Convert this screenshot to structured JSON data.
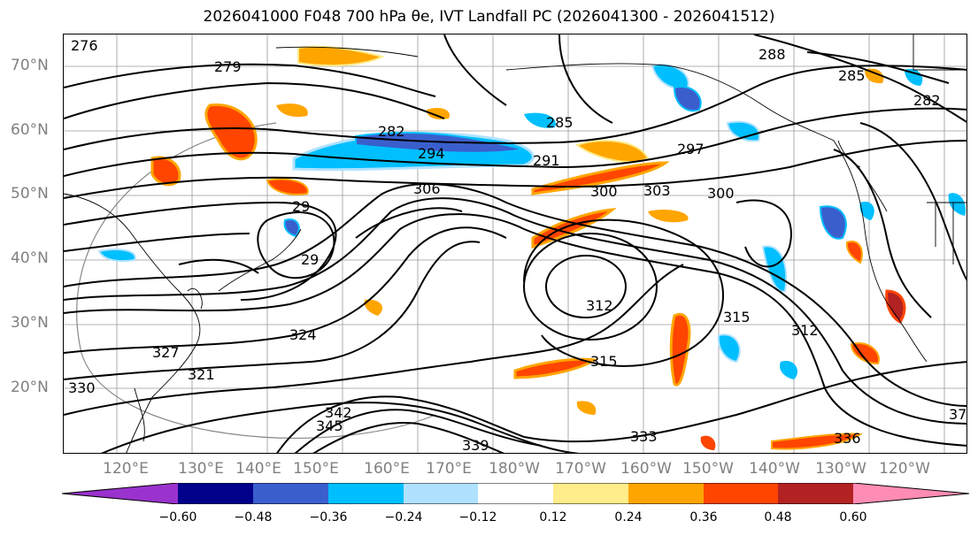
{
  "title": "2026041000 F048 700 hPa θe, IVT Landfall PC (2026041300 - 2026041512)",
  "lat_labels": [
    "70°N",
    "60°N",
    "50°N",
    "40°N",
    "30°N",
    "20°N"
  ],
  "lon_labels": [
    "120°E",
    "130°E",
    "140°E",
    "150°E",
    "160°E",
    "170°E",
    "180°W",
    "170°W",
    "160°W",
    "150°W",
    "140°W",
    "130°W",
    "120°W"
  ],
  "contour_labels": [
    "276",
    "279",
    "288",
    "285",
    "282",
    "285",
    "282",
    "294",
    "291",
    "297",
    "306",
    "303",
    "300",
    "300",
    "29",
    "29",
    "312",
    "315",
    "312",
    "315",
    "327",
    "324",
    "321",
    "330",
    "342",
    "345",
    "339",
    "333",
    "336",
    "37"
  ],
  "colorbar": {
    "ticks": [
      "−0.60",
      "−0.48",
      "−0.36",
      "−0.24",
      "−0.12",
      "0.12",
      "0.24",
      "0.36",
      "0.48",
      "0.60"
    ],
    "colors": [
      "#9a32cd",
      "#00008b",
      "#3a5fcd",
      "#00bfff",
      "#b0e2ff",
      "#ffffff",
      "#ffec8b",
      "#ffa500",
      "#ff4500",
      "#b22222",
      "#ff8cb4"
    ]
  }
}
